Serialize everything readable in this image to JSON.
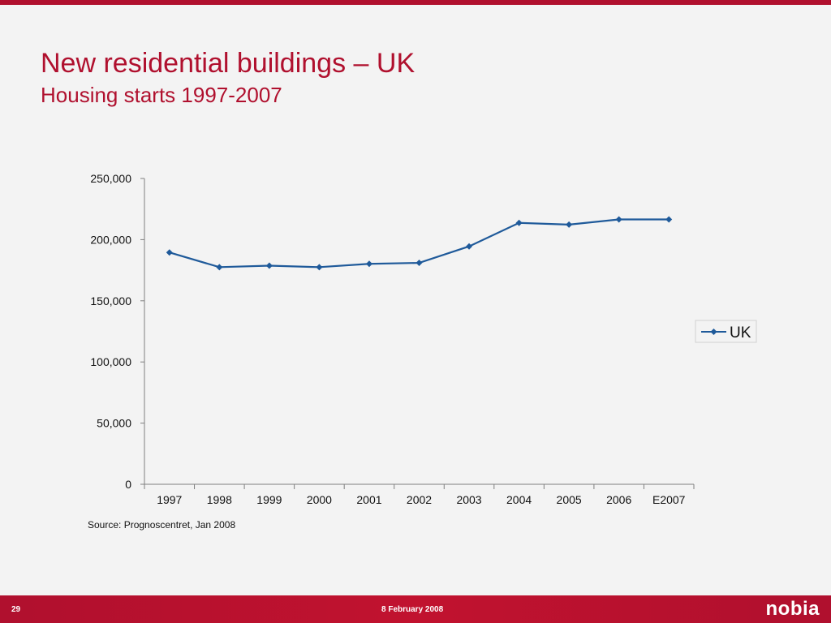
{
  "slide": {
    "title": "New residential buildings – UK",
    "subtitle": "Housing starts 1997-2007",
    "source": "Source: Prognoscentret, Jan 2008",
    "page_number": "29",
    "date": "8 February 2008",
    "logo": "nobia"
  },
  "colors": {
    "brand_red": "#b0102e",
    "series_line": "#1f5a9a",
    "background": "#f3f3f3"
  },
  "chart_data": {
    "type": "line",
    "title": "",
    "xlabel": "",
    "ylabel": "",
    "categories": [
      "1997",
      "1998",
      "1999",
      "2000",
      "2001",
      "2002",
      "2003",
      "2004",
      "2005",
      "2006",
      "E2007"
    ],
    "series": [
      {
        "name": "UK",
        "values": [
          189500,
          177500,
          178700,
          177500,
          180200,
          181000,
          194500,
          213700,
          212300,
          216500,
          216500
        ]
      }
    ],
    "ylim": [
      0,
      250000
    ],
    "yticks": [
      0,
      50000,
      100000,
      150000,
      200000,
      250000
    ],
    "ytick_labels": [
      "0",
      "50,000",
      "100,000",
      "150,000",
      "200,000",
      "250,000"
    ],
    "legend_position": "right",
    "grid": false
  }
}
